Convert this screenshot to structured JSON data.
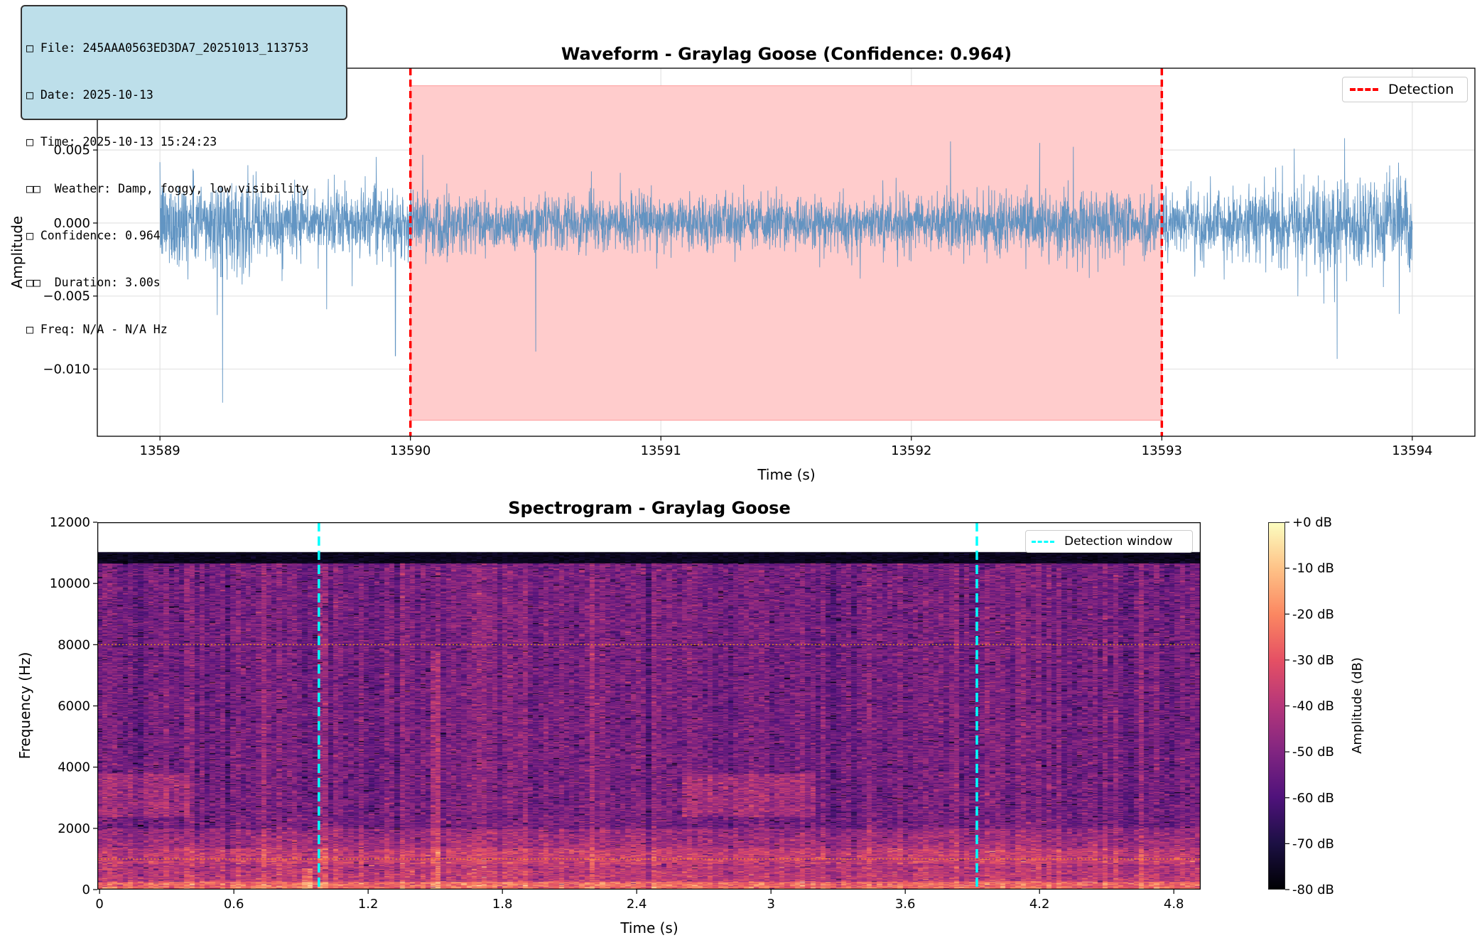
{
  "info_box": {
    "lines": [
      "□ File: 245AAA0563ED3DA7_20251013_113753",
      "□ Date: 2025-10-13",
      "□ Time: 2025-10-13 15:24:23",
      "□□  Weather: Damp, foggy, low visibility",
      "□ Confidence: 0.964",
      "□□  Duration: 3.00s",
      "□ Freq: N/A - N/A Hz"
    ]
  },
  "chart_data": [
    {
      "type": "line",
      "title": "Waveform - Graylag Goose (Confidence: 0.964)",
      "xlabel": "Time (s)",
      "ylabel": "Amplitude",
      "xlim": [
        13588.75,
        13594.25
      ],
      "ylim": [
        -0.0146,
        0.0106
      ],
      "x_range": [
        13589,
        13594
      ],
      "x_ticks": [
        "13589",
        "13590",
        "13591",
        "13592",
        "13593",
        "13594"
      ],
      "x_tick_values": [
        13589,
        13590,
        13591,
        13592,
        13593,
        13594
      ],
      "y_ticks": [
        "−0.010",
        "−0.005",
        "0.000",
        "0.005"
      ],
      "y_tick_values": [
        -0.01,
        -0.005,
        0,
        0.005
      ],
      "grid": true,
      "series_color": "#5a8fc0",
      "detection": {
        "start": 13590,
        "end": 13593,
        "shade_ymin": -0.0135,
        "shade_ymax": 0.0094,
        "color": "#ff0000",
        "shade_color": "#ffcccc"
      },
      "legend": {
        "entries": [
          "Detection"
        ],
        "placement": "top-right"
      },
      "notable_peaks": [
        {
          "x": 13589.25,
          "y": -0.0123
        },
        {
          "x": 13589.94,
          "y": -0.0091
        },
        {
          "x": 13590.5,
          "y": -0.0088
        },
        {
          "x": 13593.7,
          "y": -0.0093
        }
      ]
    },
    {
      "type": "heatmap",
      "title": "Spectrogram - Graylag Goose",
      "xlabel": "Time (s)",
      "ylabel": "Frequency (Hz)",
      "xlim": [
        -0.01,
        4.92
      ],
      "ylim": [
        0,
        12000
      ],
      "x_ticks": [
        "0",
        "0.6",
        "1.2",
        "1.8",
        "2.4",
        "3",
        "3.6",
        "4.2",
        "4.8"
      ],
      "x_tick_values": [
        0,
        0.6,
        1.2,
        1.8,
        2.4,
        3.0,
        3.6,
        4.2,
        4.8
      ],
      "y_ticks": [
        "0",
        "2000",
        "4000",
        "6000",
        "8000",
        "10000",
        "12000"
      ],
      "y_tick_values": [
        0,
        2000,
        4000,
        6000,
        8000,
        10000,
        12000
      ],
      "max_frequency": 11025,
      "reference_lines_hz": [
        1000,
        8000
      ],
      "reference_line_color": "#ffa500",
      "detection_window": {
        "start": 0.98,
        "end": 3.92,
        "color": "#00ffff"
      },
      "legend": {
        "entries": [
          "Detection window"
        ],
        "placement": "top-right"
      },
      "colorbar": {
        "label": "Amplitude (dB)",
        "range": [
          -80,
          0
        ],
        "ticks": [
          "+0 dB",
          "-10 dB",
          "-20 dB",
          "-30 dB",
          "-40 dB",
          "-50 dB",
          "-60 dB",
          "-70 dB",
          "-80 dB"
        ],
        "tick_values": [
          0,
          -10,
          -20,
          -30,
          -40,
          -50,
          -60,
          -70,
          -80
        ],
        "colormap": "magma",
        "colormap_stops": [
          "#000004",
          "#1c1044",
          "#4f127b",
          "#812581",
          "#b5367a",
          "#e55064",
          "#fb8761",
          "#fec287",
          "#fcfdbf"
        ]
      }
    }
  ]
}
